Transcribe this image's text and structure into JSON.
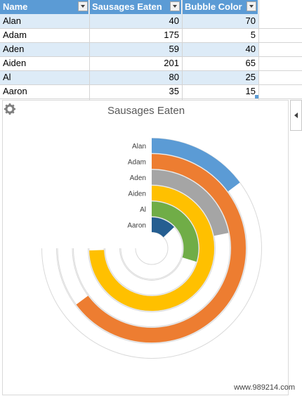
{
  "table": {
    "headers": [
      "Name",
      "Sausages Eaten",
      "Bubble Color"
    ],
    "rows": [
      {
        "name": "Alan",
        "sausages": "40",
        "bubble": "70"
      },
      {
        "name": "Adam",
        "sausages": "175",
        "bubble": "5"
      },
      {
        "name": "Aden",
        "sausages": "59",
        "bubble": "40"
      },
      {
        "name": "Aiden",
        "sausages": "201",
        "bubble": "65"
      },
      {
        "name": "Al",
        "sausages": "80",
        "bubble": "25"
      },
      {
        "name": "Aaron",
        "sausages": "35",
        "bubble": "15"
      }
    ],
    "header_color": "#5b9bd5",
    "band_color": "#ddebf7"
  },
  "chart_data": {
    "type": "radial-bar",
    "title": "Sausages Eaten",
    "categories": [
      "Alan",
      "Adam",
      "Aden",
      "Aiden",
      "Al",
      "Aaron"
    ],
    "values": [
      40,
      175,
      59,
      201,
      80,
      35
    ],
    "max": 270,
    "colors": [
      "#5b9bd5",
      "#ed7d31",
      "#a5a5a5",
      "#ffc000",
      "#70ad47",
      "#255e91"
    ]
  },
  "watermark": "www.989214.com",
  "icons": {
    "settings": "gear-icon",
    "pane_toggle": "chevron-left-icon",
    "filter": "dropdown-arrow-icon"
  }
}
